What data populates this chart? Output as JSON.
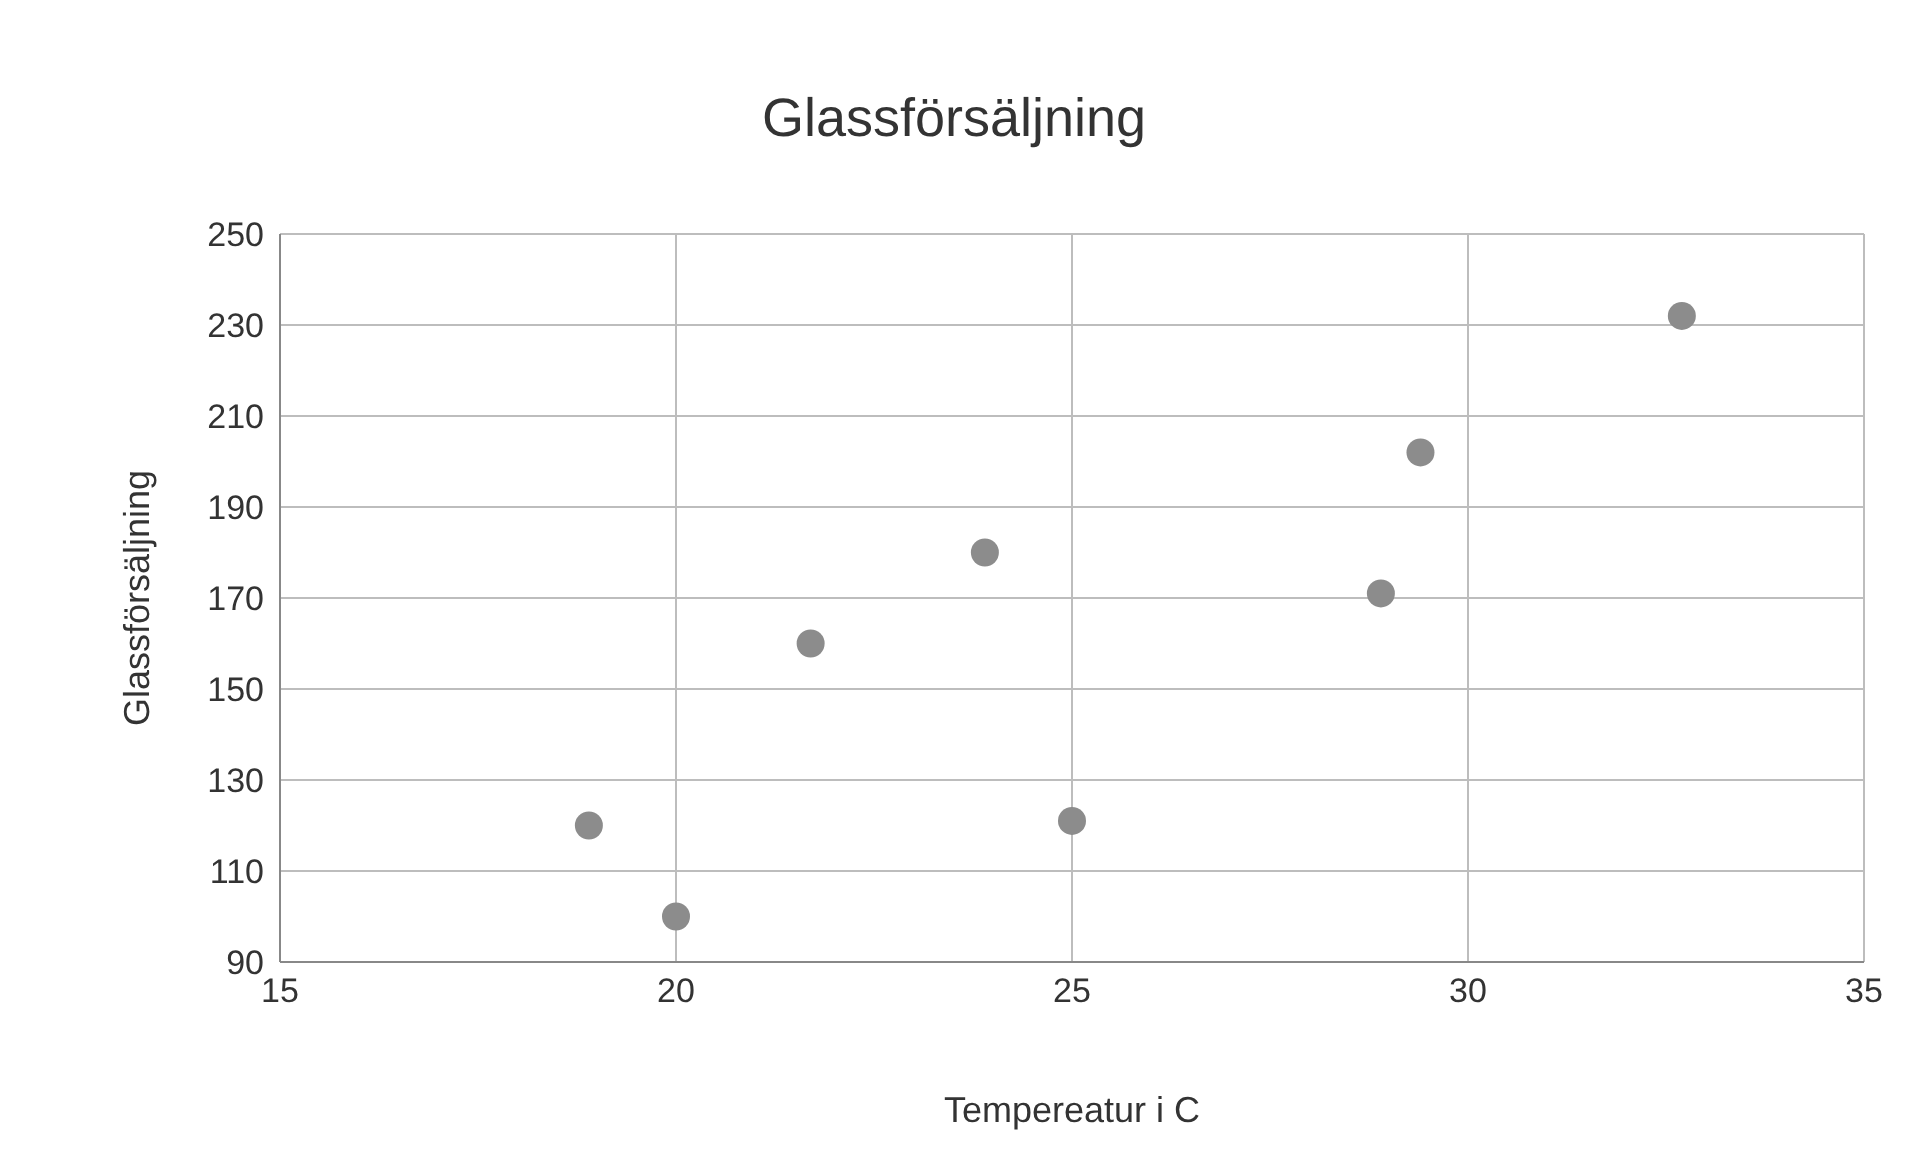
{
  "chart_data": {
    "type": "scatter",
    "title": "Glassförsäljning",
    "xlabel": "Tempereatur i C",
    "ylabel": "Glassförsäljning",
    "x": [
      18.9,
      20,
      21.7,
      23.9,
      25,
      28.9,
      29.4,
      32.7
    ],
    "values": [
      120,
      100,
      160,
      180,
      121,
      171,
      202,
      232
    ],
    "color": "#8c8c8c",
    "marker": "circle",
    "xlim": [
      15,
      35
    ],
    "xticks": [
      15,
      20,
      25,
      30,
      35
    ],
    "ylim": [
      90,
      250
    ],
    "yticks": [
      90,
      110,
      130,
      150,
      170,
      190,
      210,
      230,
      250
    ],
    "grid": true
  }
}
